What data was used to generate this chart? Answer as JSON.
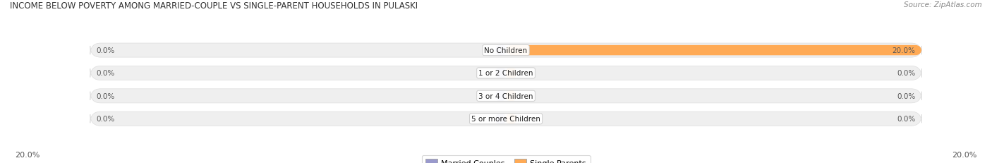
{
  "title": "INCOME BELOW POVERTY AMONG MARRIED-COUPLE VS SINGLE-PARENT HOUSEHOLDS IN PULASKI",
  "source": "Source: ZipAtlas.com",
  "categories": [
    "No Children",
    "1 or 2 Children",
    "3 or 4 Children",
    "5 or more Children"
  ],
  "married_values": [
    0.0,
    0.0,
    0.0,
    0.0
  ],
  "single_values": [
    20.0,
    0.0,
    0.0,
    0.0
  ],
  "xlim_abs": 20.0,
  "married_color": "#9999cc",
  "single_color": "#ffaa55",
  "bg_bar_color": "#efefef",
  "bar_bg_edge_color": "#dddddd",
  "label_color": "#555555",
  "title_color": "#333333",
  "source_color": "#888888",
  "legend_married_color": "#9999cc",
  "legend_single_color": "#ffaa55",
  "axis_label_left": "20.0%",
  "axis_label_right": "20.0%",
  "figsize": [
    14.06,
    2.32
  ],
  "dpi": 100
}
